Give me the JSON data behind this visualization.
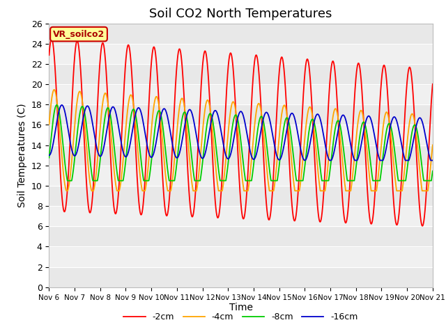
{
  "title": "Soil CO2 North Temperatures",
  "ylabel": "Soil Temperatures (C)",
  "xlabel": "Time",
  "annotation": "VR_soilco2",
  "ylim": [
    0,
    26
  ],
  "xlim": [
    0,
    360
  ],
  "xtick_labels": [
    "Nov 6",
    "Nov 7",
    "Nov 8",
    "Nov 9",
    "Nov 10",
    "Nov 11",
    "Nov 12",
    "Nov 13",
    "Nov 14",
    "Nov 15",
    "Nov 16",
    "Nov 17",
    "Nov 18",
    "Nov 19",
    "Nov 20",
    "Nov 21"
  ],
  "legend_labels": [
    "-2cm",
    "-4cm",
    "-8cm",
    "-16cm"
  ],
  "colors": [
    "#ff0000",
    "#ffa500",
    "#00cc00",
    "#0000cc"
  ],
  "band_colors": [
    "#e8e8e8",
    "#f0f0f0"
  ],
  "title_fontsize": 13,
  "axis_label_fontsize": 10
}
